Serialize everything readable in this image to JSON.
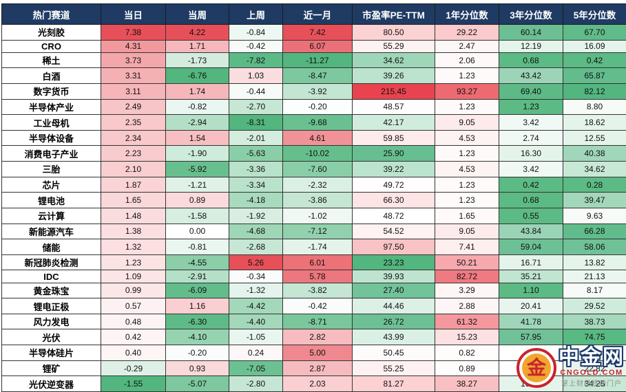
{
  "chart_data": {
    "type": "table",
    "grid": "on",
    "columns": [
      "热门赛道",
      "当日",
      "当周",
      "上周",
      "近一月",
      "市盈率PE-TTM",
      "1年分位数",
      "3年分位数",
      "5年分位数"
    ],
    "rows": [
      {
        "name": "光刻胶",
        "values": [
          "7.38",
          "4.22",
          "-0.84",
          "7.42",
          "80.50",
          "29.22",
          "60.14",
          "67.70"
        ],
        "colors": [
          "#e85059",
          "#e85059",
          "#eef8f2",
          "#e85059",
          "#fbd2d4",
          "#facacd",
          "#6bbf92",
          "#60bb8a"
        ]
      },
      {
        "name": "CRO",
        "values": [
          "4.31",
          "1.71",
          "-0.42",
          "6.07",
          "55.29",
          "2.47",
          "12.19",
          "16.09"
        ],
        "colors": [
          "#f2999e",
          "#f6b8bc",
          "#f6fbf8",
          "#ec7077",
          "#fef1f1",
          "#fef7f7",
          "#e4f4eb",
          "#e4f4eb"
        ]
      },
      {
        "name": "稀土",
        "values": [
          "3.73",
          "-1.73",
          "-7.82",
          "-11.27",
          "34.62",
          "2.06",
          "0.68",
          "0.42"
        ],
        "colors": [
          "#f3a7ab",
          "#d3ecde",
          "#5cba86",
          "#52b67e",
          "#9ed6b8",
          "#fff8f8",
          "#5cba84",
          "#5cba84"
        ]
      },
      {
        "name": "白酒",
        "values": [
          "3.31",
          "-6.76",
          "1.03",
          "-8.47",
          "39.26",
          "1.23",
          "43.42",
          "65.87"
        ],
        "colors": [
          "#f5b0b4",
          "#52b67e",
          "#faddde",
          "#7dc89e",
          "#bbe3cd",
          "#fffafa",
          "#9bd4b6",
          "#62bc8c"
        ]
      },
      {
        "name": "数字货币",
        "values": [
          "3.11",
          "1.74",
          "-0.44",
          "-3.92",
          "215.45",
          "93.27",
          "69.40",
          "82.12"
        ],
        "colors": [
          "#f5b5b9",
          "#f6b7bb",
          "#f6fbf8",
          "#c3e6d2",
          "#e8434e",
          "#ee6a71",
          "#5dba87",
          "#52b67e"
        ]
      },
      {
        "name": "半导体产业",
        "values": [
          "2.49",
          "-0.82",
          "-2.70",
          "-0.20",
          "48.57",
          "1.23",
          "1.23",
          "8.80"
        ],
        "colors": [
          "#f7c4c7",
          "#eaf6f0",
          "#c7e7d5",
          "#fcfefd",
          "#fcfdfc",
          "#fffafa",
          "#5cba84",
          "#f6fbf8"
        ]
      },
      {
        "name": "工业母机",
        "values": [
          "2.35",
          "-2.94",
          "-8.31",
          "-9.68",
          "42.17",
          "9.05",
          "3.42",
          "18.62"
        ],
        "colors": [
          "#f8c8cb",
          "#b4dfc7",
          "#52b67e",
          "#6ac090",
          "#d0ecdd",
          "#fdebec",
          "#f1f9f5",
          "#e4f4eb"
        ]
      },
      {
        "name": "半导体设备",
        "values": [
          "2.34",
          "1.54",
          "-2.01",
          "4.61",
          "59.85",
          "4.53",
          "2.74",
          "12.55"
        ],
        "colors": [
          "#f8c8cb",
          "#f7bfc2",
          "#d5eddf",
          "#f19298",
          "#feebec",
          "#fef3f3",
          "#f1f9f5",
          "#e4f4eb"
        ]
      },
      {
        "name": "消费电子产业",
        "values": [
          "2.23",
          "-1.90",
          "-5.63",
          "-10.02",
          "25.90",
          "1.23",
          "16.30",
          "40.38"
        ],
        "colors": [
          "#f8cbce",
          "#ceebdb",
          "#8acea8",
          "#65be8c",
          "#67be90",
          "#fffafa",
          "#e4f4eb",
          "#a0d6b9"
        ]
      },
      {
        "name": "三胎",
        "values": [
          "2.10",
          "-5.92",
          "-3.36",
          "-7.60",
          "39.22",
          "4.53",
          "3.42",
          "34.62"
        ],
        "colors": [
          "#f8ced1",
          "#68bf8e",
          "#b9e2cb",
          "#8acea8",
          "#bbe3cd",
          "#fef3f3",
          "#f1f9f5",
          "#c8e8d6"
        ]
      },
      {
        "name": "芯片",
        "values": [
          "1.87",
          "-1.21",
          "-3.34",
          "-2.32",
          "49.72",
          "1.23",
          "0.42",
          "0.28"
        ],
        "colors": [
          "#f9d3d5",
          "#e0f2e8",
          "#b9e2cb",
          "#dbf0e4",
          "#fffdfd",
          "#fffafa",
          "#5cba84",
          "#5cba84"
        ]
      },
      {
        "name": "锂电池",
        "values": [
          "1.65",
          "0.89",
          "-4.18",
          "-3.86",
          "66.30",
          "1.23",
          "0.68",
          "39.47"
        ],
        "colors": [
          "#fad8da",
          "#fadadc",
          "#a8dabe",
          "#c4e6d3",
          "#fde4e5",
          "#fffafa",
          "#5cba84",
          "#a2d7ba"
        ]
      },
      {
        "name": "云计算",
        "values": [
          "1.48",
          "-1.58",
          "-1.92",
          "-1.02",
          "48.72",
          "1.65",
          "0.55",
          "9.63"
        ],
        "colors": [
          "#fadcde",
          "#d7eee1",
          "#d7eee1",
          "#eff8f3",
          "#ffffff",
          "#fff9f9",
          "#5cba84",
          "#f6fbf8"
        ]
      },
      {
        "name": "新能源汽车",
        "values": [
          "1.38",
          "0.00",
          "-4.68",
          "-7.12",
          "54.52",
          "9.05",
          "43.84",
          "66.28"
        ],
        "colors": [
          "#fbdee0",
          "#ffffff",
          "#9ed6b6",
          "#92d1ad",
          "#fef2f2",
          "#fdebec",
          "#9ad4b6",
          "#61bc8b"
        ]
      },
      {
        "name": "储能",
        "values": [
          "1.32",
          "-0.81",
          "-2.68",
          "-1.74",
          "97.50",
          "7.41",
          "59.04",
          "58.06"
        ],
        "colors": [
          "#fbdfe1",
          "#eaf6f0",
          "#c7e7d5",
          "#e4f4eb",
          "#f9c2c5",
          "#feeeee",
          "#6dc095",
          "#70c197"
        ]
      },
      {
        "name": "新冠肺炎检测",
        "values": [
          "1.23",
          "-4.55",
          "5.26",
          "6.01",
          "23.23",
          "50.21",
          "16.71",
          "13.82"
        ],
        "colors": [
          "#fbe2e3",
          "#8bcea8",
          "#e85059",
          "#ec7278",
          "#52b67e",
          "#f7a9ad",
          "#e4f4eb",
          "#e4f4eb"
        ]
      },
      {
        "name": "IDC",
        "values": [
          "1.09",
          "-2.91",
          "-0.34",
          "5.78",
          "39.93",
          "82.72",
          "35.21",
          "21.13"
        ],
        "colors": [
          "#fbe5e6",
          "#b5e0c8",
          "#f8fcfa",
          "#ed777e",
          "#bee4cf",
          "#f07a81",
          "#c0e5d1",
          "#eaf6ef"
        ]
      },
      {
        "name": "黄金珠宝",
        "values": [
          "0.99",
          "-6.09",
          "-1.32",
          "-3.82",
          "27.40",
          "3.29",
          "1.10",
          "8.17"
        ],
        "colors": [
          "#fce7e8",
          "#63bd8b",
          "#e4f3eb",
          "#c4e6d3",
          "#72c29a",
          "#fef5f5",
          "#5cba84",
          "#f6fbf8"
        ]
      },
      {
        "name": "锂电正极",
        "values": [
          "0.57",
          "1.16",
          "-4.42",
          "-0.42",
          "44.46",
          "2.88",
          "20.41",
          "29.52"
        ],
        "colors": [
          "#fdf1f2",
          "#f9cfd1",
          "#a3d8bb",
          "#f9fcfa",
          "#dcf0e5",
          "#fef6f6",
          "#e8f5ee",
          "#cfebdc"
        ]
      },
      {
        "name": "风力发电",
        "values": [
          "0.48",
          "-6.30",
          "-4.40",
          "-8.71",
          "26.72",
          "61.32",
          "41.78",
          "38.73"
        ],
        "colors": [
          "#fdf3f4",
          "#5ebb87",
          "#a3d8bb",
          "#79c79b",
          "#6dc095",
          "#f4989d",
          "#9fd6b9",
          "#a5d8bc"
        ]
      },
      {
        "name": "光伏",
        "values": [
          "0.42",
          "-4.10",
          "-1.05",
          "2.82",
          "43.99",
          "15.23",
          "57.95",
          "74.75"
        ],
        "colors": [
          "#fef4f5",
          "#96d3b1",
          "#e9f6ef",
          "#f6bcc0",
          "#daf0e4",
          "#fce0e2",
          "#70c197",
          "#58b983"
        ]
      },
      {
        "name": "半导体硅片",
        "values": [
          "0.40",
          "-0.20",
          "0.24",
          "5.00",
          "50.45",
          "0.82",
          "",
          ""
        ],
        "colors": [
          "#fef5f5",
          "#fafdfb",
          "#fef7f7",
          "#ef898f",
          "#fffbfb",
          "#fffcfc",
          "#ffffff",
          "#ffffff"
        ]
      },
      {
        "name": "锂矿",
        "values": [
          "-0.29",
          "0.93",
          "-7.05",
          "2.87",
          "55.25",
          "0.89",
          "",
          "22.82"
        ],
        "colors": [
          "#dff1e7",
          "#fad9db",
          "#6cc192",
          "#f6bbbf",
          "#fef1f1",
          "#fffcfc",
          "#ffffff",
          "#e8f5ee"
        ]
      },
      {
        "name": "光伏逆变器",
        "values": [
          "-1.55",
          "-5.07",
          "-2.80",
          "2.03",
          "81.27",
          "38.27",
          "16.30",
          "34.25"
        ],
        "colors": [
          "#52b67e",
          "#7dc89e",
          "#c5e6d4",
          "#f9cfd2",
          "#fbd1d3",
          "#f9c0c3",
          "#e4f4eb",
          "#c8e8d6"
        ]
      }
    ]
  },
  "watermark": {
    "brand": "中金网",
    "domain": "CNGOLD.COM",
    "tagline": "掌上财经移动门户",
    "logo_char": "金"
  },
  "colors": {
    "header_bg": "#1f3b63",
    "header_text": "#ffffff",
    "up_red": "#e85059",
    "down_green": "#52b67e",
    "logo_red": "#c8242b",
    "logo_gold": "#f0a62f"
  }
}
